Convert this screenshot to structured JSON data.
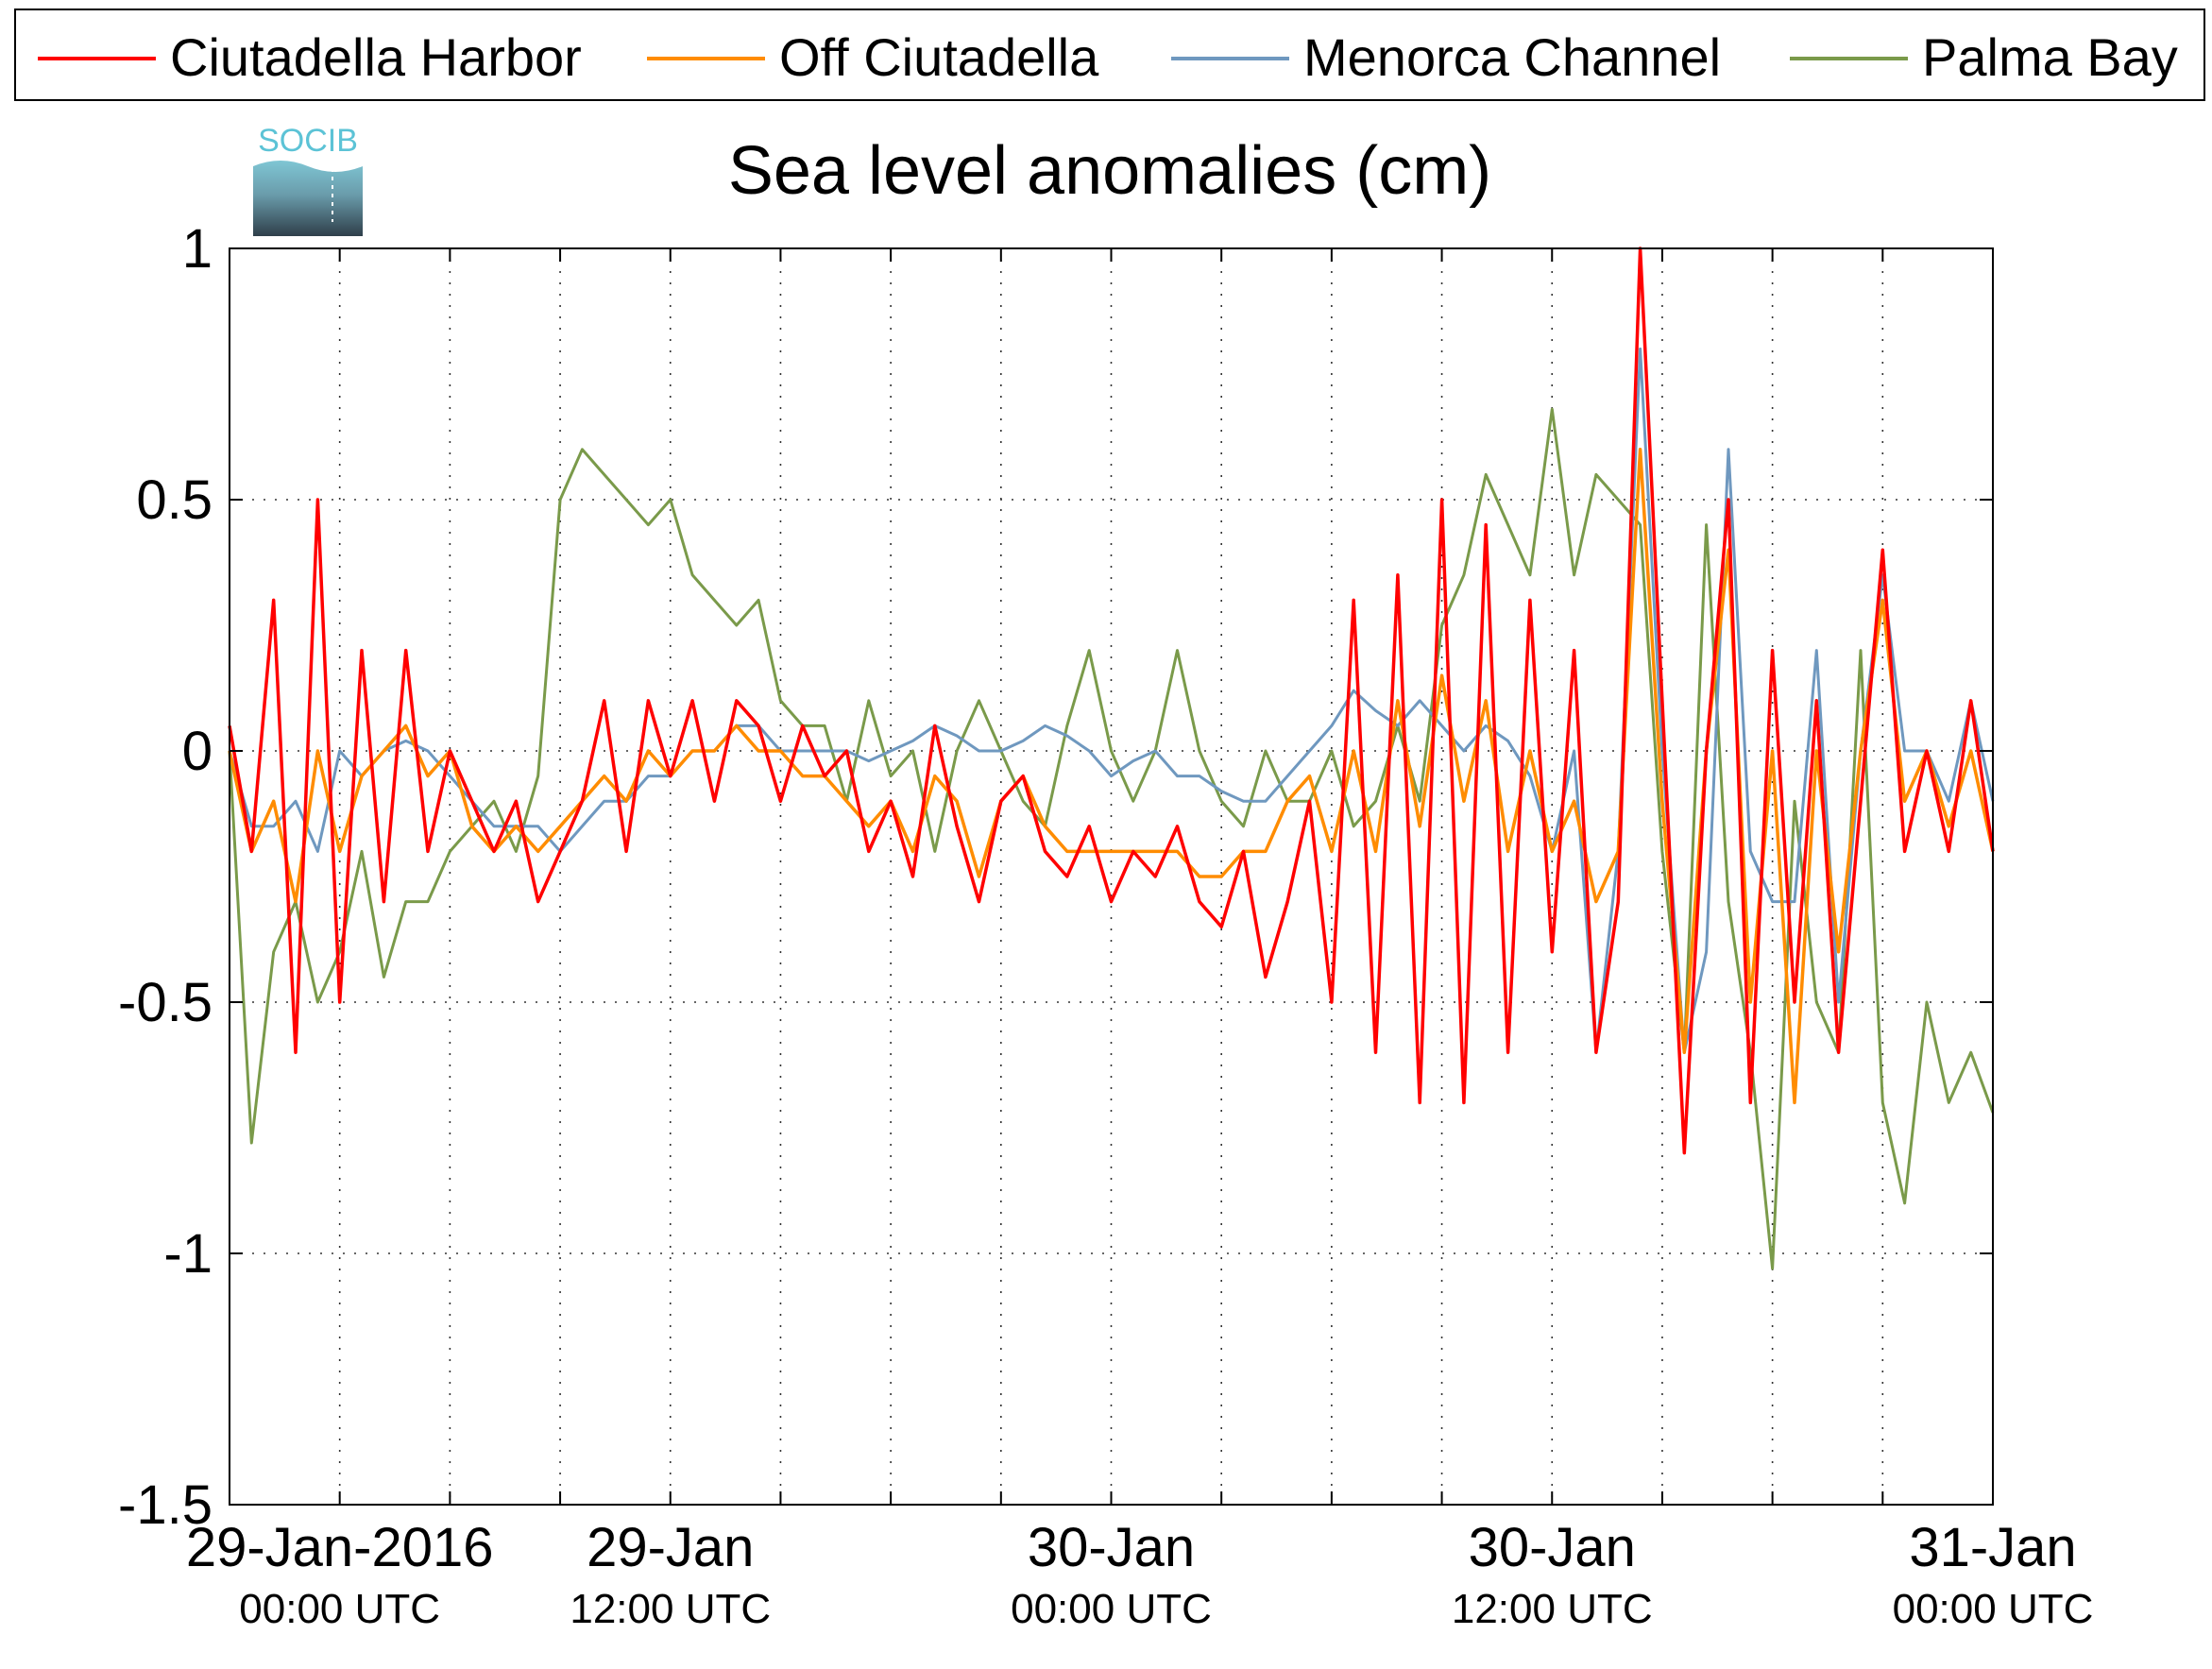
{
  "legend": {
    "items": [
      {
        "label": "Ciutadella Harbor",
        "color": "#ff0000"
      },
      {
        "label": "Off Ciutadella",
        "color": "#ff8c00"
      },
      {
        "label": "Menorca Channel",
        "color": "#6f98bf"
      },
      {
        "label": "Palma Bay",
        "color": "#7a9a4a"
      }
    ]
  },
  "logo": {
    "text": "SOCIB",
    "icon": "socib-logo-icon"
  },
  "chart_data": {
    "type": "line",
    "title": "Sea level anomalies (cm)",
    "xlabel": "",
    "ylabel": "",
    "x_unit": "hours since 29-Jan-2016 00:00 UTC",
    "xlim": [
      -5,
      75
    ],
    "ylim": [
      -1.5,
      1
    ],
    "y_ticks": [
      "1",
      "0.5",
      "0",
      "-0.5",
      "-1",
      "-1.5"
    ],
    "y_tick_values": [
      1,
      0.5,
      0,
      -0.5,
      -1,
      -1.5
    ],
    "x_ticks": [
      {
        "value": 0,
        "date": "29-Jan-2016",
        "time": "00:00 UTC"
      },
      {
        "value": 15,
        "date": "29-Jan",
        "time": "12:00 UTC"
      },
      {
        "value": 35,
        "date": "30-Jan",
        "time": "00:00 UTC"
      },
      {
        "value": 55,
        "date": "30-Jan",
        "time": "12:00 UTC"
      },
      {
        "value": 75,
        "date": "31-Jan",
        "time": "00:00 UTC"
      }
    ],
    "minor_x_ticks": [
      5,
      10,
      20,
      25,
      30,
      40,
      45,
      50,
      60,
      65,
      70
    ],
    "grid": true,
    "legend_position": "top",
    "series": [
      {
        "name": "Ciutadella Harbor",
        "color": "#ff0000",
        "x": [
          -5,
          -4,
          -3,
          -2,
          -1,
          0,
          1,
          2,
          3,
          4,
          5,
          6,
          7,
          8,
          9,
          10,
          11,
          12,
          13,
          14,
          15,
          16,
          17,
          18,
          19,
          20,
          21,
          22,
          23,
          24,
          25,
          26,
          27,
          28,
          29,
          30,
          31,
          32,
          33,
          34,
          35,
          36,
          37,
          38,
          39,
          40,
          41,
          42,
          43,
          44,
          45,
          46,
          47,
          48,
          49,
          50,
          51,
          52,
          53,
          54,
          55,
          56,
          57,
          58,
          59,
          60,
          61,
          62,
          63,
          64,
          65,
          66,
          67,
          68,
          69,
          70,
          71,
          72,
          73,
          74,
          75
        ],
        "values": [
          0.05,
          -0.2,
          0.3,
          -0.6,
          0.5,
          -0.5,
          0.2,
          -0.3,
          0.2,
          -0.2,
          0.0,
          -0.1,
          -0.2,
          -0.1,
          -0.3,
          -0.2,
          -0.1,
          0.1,
          -0.2,
          0.1,
          -0.05,
          0.1,
          -0.1,
          0.1,
          0.05,
          -0.1,
          0.05,
          -0.05,
          0.0,
          -0.2,
          -0.1,
          -0.25,
          0.05,
          -0.15,
          -0.3,
          -0.1,
          -0.05,
          -0.2,
          -0.25,
          -0.15,
          -0.3,
          -0.2,
          -0.25,
          -0.15,
          -0.3,
          -0.35,
          -0.2,
          -0.45,
          -0.3,
          -0.1,
          -0.5,
          0.3,
          -0.6,
          0.35,
          -0.7,
          0.5,
          -0.7,
          0.45,
          -0.6,
          0.3,
          -0.4,
          0.2,
          -0.6,
          -0.3,
          1.0,
          0.1,
          -0.8,
          0.0,
          0.5,
          -0.7,
          0.2,
          -0.5,
          0.1,
          -0.6,
          -0.1,
          0.4,
          -0.2,
          0.0,
          -0.2,
          0.1,
          -0.2
        ]
      },
      {
        "name": "Off Ciutadella",
        "color": "#ff8c00",
        "x": [
          -5,
          -4,
          -3,
          -2,
          -1,
          0,
          1,
          2,
          3,
          4,
          5,
          6,
          7,
          8,
          9,
          10,
          11,
          12,
          13,
          14,
          15,
          16,
          17,
          18,
          19,
          20,
          21,
          22,
          23,
          24,
          25,
          26,
          27,
          28,
          29,
          30,
          31,
          32,
          33,
          34,
          35,
          36,
          37,
          38,
          39,
          40,
          41,
          42,
          43,
          44,
          45,
          46,
          47,
          48,
          49,
          50,
          51,
          52,
          53,
          54,
          55,
          56,
          57,
          58,
          59,
          60,
          61,
          62,
          63,
          64,
          65,
          66,
          67,
          68,
          69,
          70,
          71,
          72,
          73,
          74,
          75
        ],
        "values": [
          0.0,
          -0.2,
          -0.1,
          -0.3,
          0.0,
          -0.2,
          -0.05,
          0.0,
          0.05,
          -0.05,
          0.0,
          -0.15,
          -0.2,
          -0.15,
          -0.2,
          -0.15,
          -0.1,
          -0.05,
          -0.1,
          0.0,
          -0.05,
          0.0,
          0.0,
          0.05,
          0.0,
          0.0,
          -0.05,
          -0.05,
          -0.1,
          -0.15,
          -0.1,
          -0.2,
          -0.05,
          -0.1,
          -0.25,
          -0.1,
          -0.05,
          -0.15,
          -0.2,
          -0.2,
          -0.2,
          -0.2,
          -0.2,
          -0.2,
          -0.25,
          -0.25,
          -0.2,
          -0.2,
          -0.1,
          -0.05,
          -0.2,
          0.0,
          -0.2,
          0.1,
          -0.15,
          0.15,
          -0.1,
          0.1,
          -0.2,
          0.0,
          -0.2,
          -0.1,
          -0.3,
          -0.2,
          0.6,
          -0.1,
          -0.6,
          0.0,
          0.4,
          -0.5,
          0.0,
          -0.7,
          0.0,
          -0.4,
          0.0,
          0.3,
          -0.1,
          0.0,
          -0.15,
          0.0,
          -0.2
        ]
      },
      {
        "name": "Menorca Channel",
        "color": "#6f98bf",
        "x": [
          -5,
          -4,
          -3,
          -2,
          -1,
          0,
          1,
          2,
          3,
          4,
          5,
          6,
          7,
          8,
          9,
          10,
          11,
          12,
          13,
          14,
          15,
          16,
          17,
          18,
          19,
          20,
          21,
          22,
          23,
          24,
          25,
          26,
          27,
          28,
          29,
          30,
          31,
          32,
          33,
          34,
          35,
          36,
          37,
          38,
          39,
          40,
          41,
          42,
          43,
          44,
          45,
          46,
          47,
          48,
          49,
          50,
          51,
          52,
          53,
          54,
          55,
          56,
          57,
          58,
          59,
          60,
          61,
          62,
          63,
          64,
          65,
          66,
          67,
          68,
          69,
          70,
          71,
          72,
          73,
          74,
          75
        ],
        "values": [
          0.0,
          -0.15,
          -0.15,
          -0.1,
          -0.2,
          0.0,
          -0.05,
          0.0,
          0.02,
          0.0,
          -0.05,
          -0.1,
          -0.15,
          -0.15,
          -0.15,
          -0.2,
          -0.15,
          -0.1,
          -0.1,
          -0.05,
          -0.05,
          0.0,
          0.0,
          0.05,
          0.05,
          0.0,
          0.0,
          0.0,
          0.0,
          -0.02,
          0.0,
          0.02,
          0.05,
          0.03,
          0.0,
          0.0,
          0.02,
          0.05,
          0.03,
          0.0,
          -0.05,
          -0.02,
          0.0,
          -0.05,
          -0.05,
          -0.08,
          -0.1,
          -0.1,
          -0.05,
          0.0,
          0.05,
          0.12,
          0.08,
          0.05,
          0.1,
          0.05,
          0.0,
          0.05,
          0.02,
          -0.05,
          -0.2,
          0.0,
          -0.6,
          -0.2,
          0.8,
          0.0,
          -0.6,
          -0.4,
          0.6,
          -0.2,
          -0.3,
          -0.3,
          0.2,
          -0.5,
          0.0,
          0.35,
          0.0,
          0.0,
          -0.1,
          0.1,
          -0.1
        ]
      },
      {
        "name": "Palma Bay",
        "color": "#7a9a4a",
        "x": [
          -5,
          -4,
          -3,
          -2,
          -1,
          0,
          1,
          2,
          3,
          4,
          5,
          6,
          7,
          8,
          9,
          10,
          11,
          12,
          13,
          14,
          15,
          16,
          17,
          18,
          19,
          20,
          21,
          22,
          23,
          24,
          25,
          26,
          27,
          28,
          29,
          30,
          31,
          32,
          33,
          34,
          35,
          36,
          37,
          38,
          39,
          40,
          41,
          42,
          43,
          44,
          45,
          46,
          47,
          48,
          49,
          50,
          51,
          52,
          53,
          54,
          55,
          56,
          57,
          58,
          59,
          60,
          61,
          62,
          63,
          64,
          65,
          66,
          67,
          68,
          69,
          70,
          71,
          72,
          73,
          74,
          75
        ],
        "values": [
          0.0,
          -0.78,
          -0.4,
          -0.3,
          -0.5,
          -0.4,
          -0.2,
          -0.45,
          -0.3,
          -0.3,
          -0.2,
          -0.15,
          -0.1,
          -0.2,
          -0.05,
          0.5,
          0.6,
          0.55,
          0.5,
          0.45,
          0.5,
          0.35,
          0.3,
          0.25,
          0.3,
          0.1,
          0.05,
          0.05,
          -0.1,
          0.1,
          -0.05,
          0.0,
          -0.2,
          0.0,
          0.1,
          0.0,
          -0.1,
          -0.15,
          0.05,
          0.2,
          0.0,
          -0.1,
          0.0,
          0.2,
          0.0,
          -0.1,
          -0.15,
          0.0,
          -0.1,
          -0.1,
          0.0,
          -0.15,
          -0.1,
          0.05,
          -0.1,
          0.25,
          0.35,
          0.55,
          0.45,
          0.35,
          0.68,
          0.35,
          0.55,
          0.5,
          0.45,
          -0.2,
          -0.6,
          0.45,
          -0.3,
          -0.6,
          -1.03,
          -0.1,
          -0.5,
          -0.6,
          0.2,
          -0.7,
          -0.9,
          -0.5,
          -0.7,
          -0.6,
          -0.72
        ]
      }
    ]
  }
}
